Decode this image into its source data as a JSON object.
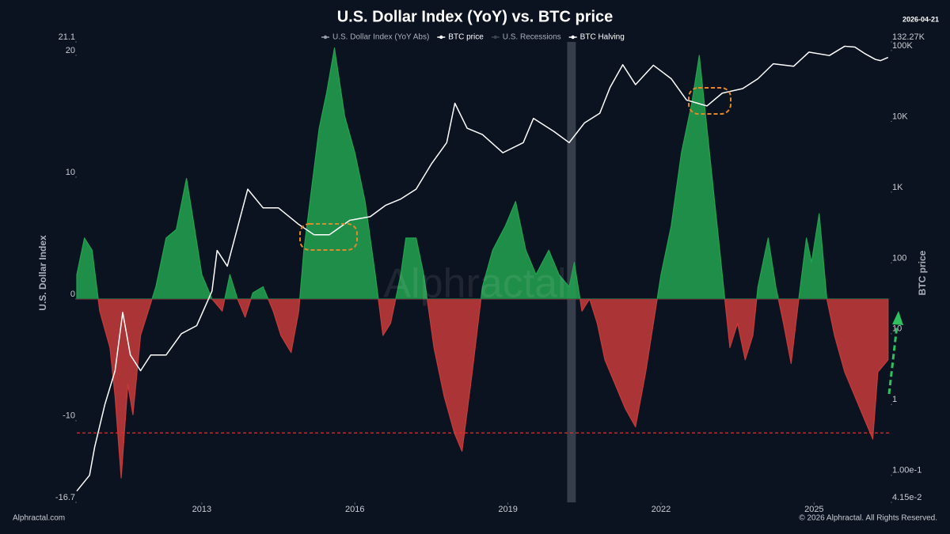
{
  "chart_data": {
    "type": "combo",
    "title": "U.S. Dollar Index (YoY) vs. BTC price",
    "date": "2026-04-21",
    "ylabel": "U.S. Dollar Index",
    "y2label": "BTC price",
    "watermark": "Alphractal",
    "footer_left": "Alphractal.com",
    "footer_right": "© 2026 Alphractal. All Rights Reserved.",
    "xlim": [
      2010.55,
      2026.5
    ],
    "xticks": [
      2013,
      2016,
      2019,
      2022,
      2025
    ],
    "ylim": [
      -16.7,
      21.1
    ],
    "yticks": [
      -16.7,
      -10,
      0,
      10,
      20,
      21.1
    ],
    "y2lim": [
      0.0415,
      132270
    ],
    "y2scale": "log",
    "y2ticks": [
      {
        "value": 132270,
        "label": "132.27K"
      },
      {
        "value": 100000,
        "label": "100K"
      },
      {
        "value": 10000,
        "label": "10K"
      },
      {
        "value": 1000,
        "label": "1K"
      },
      100,
      10,
      1,
      {
        "value": 0.1,
        "label": "1.00e-1"
      },
      {
        "value": 0.0415,
        "label": "4.15e-2"
      }
    ],
    "grid": false,
    "reference_line": {
      "value": -11,
      "color": "#e03131"
    },
    "series": [
      {
        "name": "U.S. Dollar Index (YoY Abs)",
        "type": "area",
        "color": "#9aa0aa",
        "color_positive": "#22a34f",
        "color_negative": "#c73a3a",
        "x": [
          2010.55,
          2010.7,
          2010.85,
          2011.0,
          2011.2,
          2011.3,
          2011.42,
          2011.55,
          2011.65,
          2011.8,
          2011.95,
          2012.1,
          2012.3,
          2012.5,
          2012.7,
          2012.85,
          2013.0,
          2013.2,
          2013.4,
          2013.55,
          2013.7,
          2013.85,
          2014.0,
          2014.2,
          2014.4,
          2014.55,
          2014.75,
          2014.9,
          2015.0,
          2015.15,
          2015.3,
          2015.45,
          2015.6,
          2015.8,
          2016.0,
          2016.2,
          2016.4,
          2016.55,
          2016.7,
          2016.9,
          2017.0,
          2017.2,
          2017.35,
          2017.55,
          2017.75,
          2017.95,
          2018.1,
          2018.3,
          2018.5,
          2018.7,
          2018.95,
          2019.15,
          2019.35,
          2019.55,
          2019.8,
          2020.0,
          2020.2,
          2020.3,
          2020.45,
          2020.6,
          2020.75,
          2020.9,
          2021.1,
          2021.3,
          2021.5,
          2021.7,
          2021.85,
          2022.0,
          2022.2,
          2022.4,
          2022.6,
          2022.75,
          2022.9,
          2023.05,
          2023.2,
          2023.35,
          2023.5,
          2023.65,
          2023.8,
          2023.9,
          2024.1,
          2024.25,
          2024.4,
          2024.55,
          2024.7,
          2024.85,
          2024.95,
          2025.1,
          2025.25,
          2025.4,
          2025.6,
          2025.8,
          2026.0,
          2026.15,
          2026.25,
          2026.45
        ],
        "values": [
          2,
          5,
          4,
          -1,
          -4,
          -8,
          -14.7,
          -7,
          -9.5,
          -3,
          -1,
          1,
          5,
          5.7,
          9.9,
          6,
          2,
          0,
          -1,
          2,
          0,
          -1.5,
          0.5,
          1,
          -1,
          -3,
          -4.4,
          -1,
          4,
          9,
          14,
          17,
          20.6,
          15,
          12,
          8,
          2,
          -3,
          -2,
          2,
          5,
          5,
          2,
          -4,
          -8,
          -11,
          -12.5,
          -6,
          1,
          4,
          6,
          8,
          4,
          2,
          4,
          2,
          1,
          3,
          -1,
          0,
          -2,
          -5,
          -7,
          -9,
          -10.5,
          -6,
          -2,
          2,
          6,
          12,
          16,
          20,
          14,
          8,
          2,
          -4,
          -2,
          -5,
          -3,
          1,
          5,
          1,
          -2,
          -5.3,
          0,
          5,
          3,
          7,
          0,
          -3,
          -6,
          -8,
          -10,
          -11.5,
          -6,
          -5
        ]
      },
      {
        "name": "BTC price",
        "type": "line",
        "axis": "y2",
        "color": "#ffffff",
        "x": [
          2010.55,
          2010.8,
          2010.9,
          2011.0,
          2011.1,
          2011.3,
          2011.45,
          2011.6,
          2011.8,
          2012.0,
          2012.3,
          2012.6,
          2012.9,
          2013.2,
          2013.3,
          2013.5,
          2013.9,
          2014.2,
          2014.5,
          2014.9,
          2015.2,
          2015.5,
          2015.9,
          2016.3,
          2016.6,
          2016.9,
          2017.2,
          2017.5,
          2017.8,
          2017.96,
          2018.2,
          2018.5,
          2018.9,
          2019.3,
          2019.5,
          2019.9,
          2020.2,
          2020.5,
          2020.8,
          2021.0,
          2021.25,
          2021.5,
          2021.85,
          2022.2,
          2022.5,
          2022.9,
          2023.2,
          2023.6,
          2023.9,
          2024.2,
          2024.6,
          2024.9,
          2025.3,
          2025.6,
          2025.8,
          2026.0,
          2026.2,
          2026.3,
          2026.45
        ],
        "values": [
          0.06,
          0.1,
          0.25,
          0.5,
          1,
          3,
          20,
          5,
          3,
          5,
          5,
          10,
          13,
          40,
          150,
          90,
          1100,
          600,
          600,
          350,
          250,
          250,
          400,
          450,
          650,
          800,
          1100,
          2500,
          5000,
          18000,
          8000,
          6500,
          3600,
          5000,
          11000,
          7200,
          5000,
          9500,
          13000,
          30000,
          63000,
          33000,
          62000,
          40000,
          20000,
          16500,
          25000,
          29000,
          40000,
          65000,
          60000,
          95000,
          85000,
          115000,
          112000,
          90000,
          75000,
          72000,
          80000
        ]
      },
      {
        "name": "U.S. Recessions",
        "type": "band",
        "color": "#3b4250",
        "x": [
          2020.16,
          2020.33
        ]
      },
      {
        "name": "BTC Halving",
        "type": "event",
        "color": "#ffffff",
        "x": []
      }
    ]
  }
}
